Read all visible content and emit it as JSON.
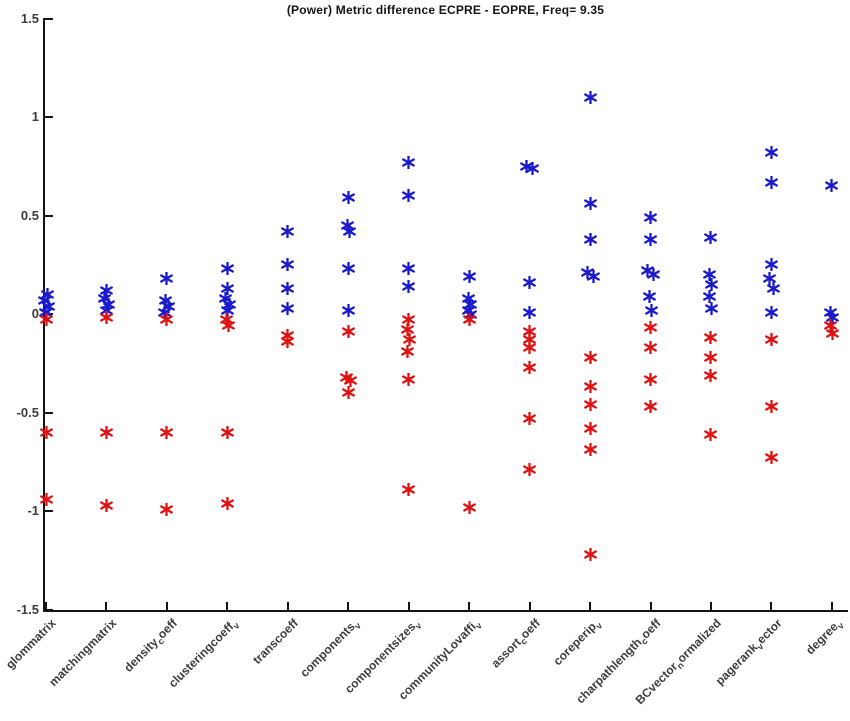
{
  "figure": {
    "title": "(Power) Metric difference ECPRE - EOPRE, Freq= 9.35"
  },
  "chart_data": {
    "type": "scatter",
    "title": "(Power) Metric difference ECPRE - EOPRE, Freq= 9.35",
    "xlabel": "",
    "ylabel": "",
    "ylim": [
      -1.5,
      1.5
    ],
    "yticks": [
      1.5,
      1,
      0.5,
      0,
      -0.5,
      -1,
      -1.5
    ],
    "ytick_labels": [
      "1.5",
      "1",
      "0.5",
      "0",
      "-0.5",
      "-1",
      "-1.5"
    ],
    "grid": false,
    "legend_position": "none",
    "marker": "asterisk",
    "categories": [
      "glommatrix",
      "matchingmatrix",
      "density_{c}oeff",
      "clusteringcoeff_{v}",
      "transcoeff",
      "components_{v}",
      "componentsizes_{v}",
      "communityLovaffi_{v}",
      "assort_{c}oeff",
      "coreperip_{v}",
      "charpathlength_{c}oeff",
      "BCvector_{n}ormalized",
      "pagerank_{v}ector",
      "degree_{v}"
    ],
    "series": [
      {
        "name": "positive-differences-blue",
        "color": "#1a1acc",
        "points": [
          [
            0,
            0.1,
            1
          ],
          [
            0,
            0.07,
            -2
          ],
          [
            0,
            0.04,
            2
          ],
          [
            0,
            0.01,
            -1
          ],
          [
            1,
            0.12,
            0
          ],
          [
            1,
            0.08,
            -2
          ],
          [
            1,
            0.05,
            2
          ],
          [
            1,
            0.02,
            0
          ],
          [
            2,
            0.18,
            0
          ],
          [
            2,
            0.07,
            -1
          ],
          [
            2,
            0.04,
            2
          ],
          [
            2,
            0.01,
            -2
          ],
          [
            3,
            0.23,
            0
          ],
          [
            3,
            0.13,
            0
          ],
          [
            3,
            0.08,
            -2
          ],
          [
            3,
            0.05,
            2
          ],
          [
            3,
            0.02,
            0
          ],
          [
            4,
            0.42,
            0
          ],
          [
            4,
            0.25,
            0
          ],
          [
            4,
            0.13,
            0
          ],
          [
            4,
            0.03,
            0
          ],
          [
            5,
            0.59,
            0
          ],
          [
            5,
            0.45,
            -1
          ],
          [
            5,
            0.42,
            1
          ],
          [
            5,
            0.23,
            0
          ],
          [
            5,
            0.02,
            0
          ],
          [
            6,
            0.77,
            0
          ],
          [
            6,
            0.6,
            0
          ],
          [
            6,
            0.23,
            0
          ],
          [
            6,
            0.14,
            0
          ],
          [
            7,
            0.19,
            0
          ],
          [
            7,
            0.08,
            -1
          ],
          [
            7,
            0.05,
            1
          ],
          [
            7,
            0.02,
            -1
          ],
          [
            7,
            0.0,
            1
          ],
          [
            8,
            0.75,
            -3
          ],
          [
            8,
            0.74,
            3
          ],
          [
            8,
            0.16,
            0
          ],
          [
            8,
            0.01,
            0
          ],
          [
            9,
            1.1,
            0
          ],
          [
            9,
            0.56,
            0
          ],
          [
            9,
            0.38,
            0
          ],
          [
            9,
            0.21,
            -3
          ],
          [
            9,
            0.19,
            3
          ],
          [
            10,
            0.49,
            0
          ],
          [
            10,
            0.38,
            0
          ],
          [
            10,
            0.22,
            -3
          ],
          [
            10,
            0.2,
            3
          ],
          [
            10,
            0.09,
            -1
          ],
          [
            10,
            0.02,
            1
          ],
          [
            11,
            0.39,
            0
          ],
          [
            11,
            0.2,
            -1
          ],
          [
            11,
            0.15,
            1
          ],
          [
            11,
            0.09,
            -1
          ],
          [
            11,
            0.03,
            1
          ],
          [
            12,
            0.82,
            0
          ],
          [
            12,
            0.67,
            0
          ],
          [
            12,
            0.25,
            0
          ],
          [
            12,
            0.18,
            -2
          ],
          [
            12,
            0.13,
            2
          ],
          [
            12,
            0.01,
            0
          ],
          [
            13,
            0.65,
            0
          ],
          [
            13,
            0.01,
            -1
          ],
          [
            13,
            -0.02,
            1
          ]
        ]
      },
      {
        "name": "negative-differences-red",
        "color": "#e01111",
        "points": [
          [
            0,
            -0.03,
            0
          ],
          [
            0,
            -0.6,
            0
          ],
          [
            0,
            -0.94,
            0
          ],
          [
            1,
            -0.02,
            0
          ],
          [
            1,
            -0.6,
            0
          ],
          [
            1,
            -0.97,
            0
          ],
          [
            2,
            -0.03,
            0
          ],
          [
            2,
            -0.6,
            0
          ],
          [
            2,
            -0.99,
            0
          ],
          [
            3,
            -0.03,
            -1
          ],
          [
            3,
            -0.06,
            1
          ],
          [
            3,
            -0.6,
            0
          ],
          [
            3,
            -0.96,
            0
          ],
          [
            4,
            -0.11,
            0
          ],
          [
            4,
            -0.14,
            0
          ],
          [
            5,
            -0.09,
            0
          ],
          [
            5,
            -0.32,
            -2
          ],
          [
            5,
            -0.34,
            2
          ],
          [
            5,
            -0.4,
            0
          ],
          [
            6,
            -0.03,
            0
          ],
          [
            6,
            -0.08,
            -1
          ],
          [
            6,
            -0.13,
            1
          ],
          [
            6,
            -0.19,
            -1
          ],
          [
            6,
            -0.33,
            0
          ],
          [
            6,
            -0.89,
            0
          ],
          [
            7,
            -0.03,
            0
          ],
          [
            7,
            -0.98,
            0
          ],
          [
            8,
            -0.09,
            0
          ],
          [
            8,
            -0.13,
            0
          ],
          [
            8,
            -0.17,
            0
          ],
          [
            8,
            -0.27,
            0
          ],
          [
            8,
            -0.53,
            0
          ],
          [
            8,
            -0.79,
            0
          ],
          [
            9,
            -0.22,
            0
          ],
          [
            9,
            -0.37,
            0
          ],
          [
            9,
            -0.46,
            0
          ],
          [
            9,
            -0.58,
            0
          ],
          [
            9,
            -0.69,
            0
          ],
          [
            9,
            -1.22,
            0
          ],
          [
            10,
            -0.07,
            0
          ],
          [
            10,
            -0.17,
            0
          ],
          [
            10,
            -0.33,
            0
          ],
          [
            10,
            -0.47,
            0
          ],
          [
            11,
            -0.12,
            0
          ],
          [
            11,
            -0.22,
            0
          ],
          [
            11,
            -0.31,
            0
          ],
          [
            11,
            -0.61,
            0
          ],
          [
            12,
            -0.13,
            0
          ],
          [
            12,
            -0.47,
            0
          ],
          [
            12,
            -0.73,
            0
          ],
          [
            13,
            -0.06,
            -1
          ],
          [
            13,
            -0.1,
            1
          ]
        ]
      }
    ]
  }
}
